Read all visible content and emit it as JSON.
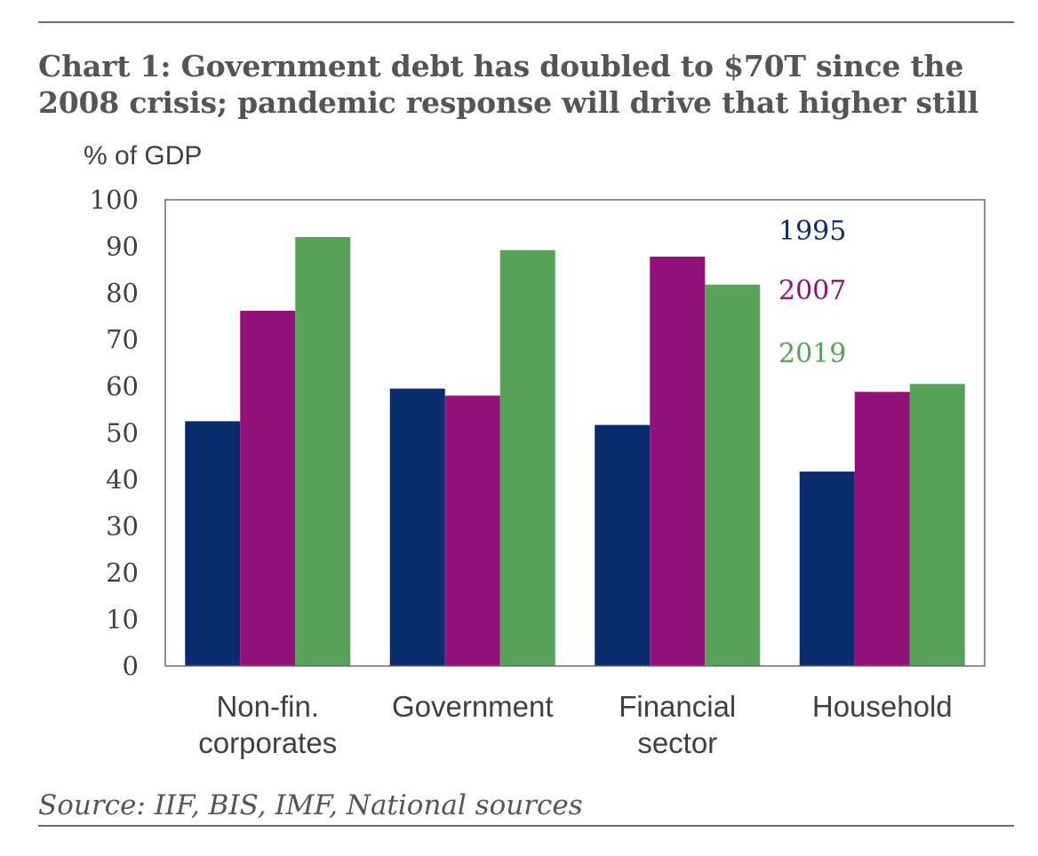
{
  "header": {
    "title_line1": "Chart 1: Government debt has doubled to $70T since the",
    "title_line2": "2008 crisis; pandemic response will drive that higher still"
  },
  "footer": {
    "source": "Source: IIF, BIS, IMF, National sources"
  },
  "chart_data": {
    "type": "bar",
    "ylabel": "% of GDP",
    "ylim": [
      0,
      100
    ],
    "yticks": [
      0,
      10,
      20,
      30,
      40,
      50,
      60,
      70,
      80,
      90,
      100
    ],
    "grid": false,
    "legend_position": "top-right",
    "categories": [
      [
        "Non-fin.",
        "corporates"
      ],
      [
        "Government"
      ],
      [
        "Financial",
        "sector"
      ],
      [
        "Household"
      ]
    ],
    "series": [
      {
        "name": "1995",
        "color": "#0b2c6c",
        "values": [
          52.5,
          59.5,
          51.7,
          41.7
        ]
      },
      {
        "name": "2007",
        "color": "#93117a",
        "values": [
          76.2,
          58.0,
          87.8,
          58.8
        ]
      },
      {
        "name": "2019",
        "color": "#57a258",
        "values": [
          92.0,
          89.2,
          81.8,
          60.5
        ]
      }
    ]
  }
}
